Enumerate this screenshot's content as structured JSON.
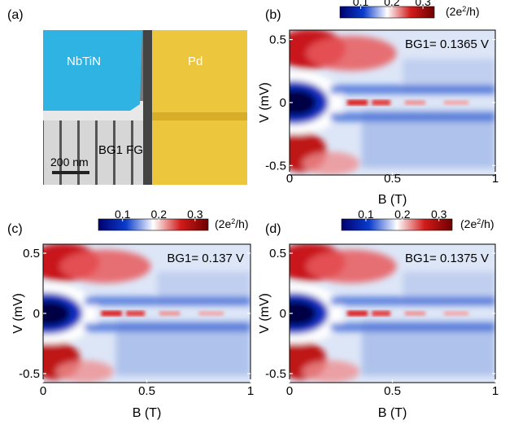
{
  "panels": {
    "a": {
      "label": "(a)",
      "nbtin": "NbTiN",
      "pd": "Pd",
      "bg1fg": "BG1  FG",
      "scale": "200 nm"
    },
    "b": {
      "label": "(b)",
      "annotation": "BG1= 0.1365 V"
    },
    "c": {
      "label": "(c)",
      "annotation": "BG1= 0.137 V"
    },
    "d": {
      "label": "(d)",
      "annotation": "BG1= 0.1375 V"
    }
  },
  "axes": {
    "xlabel": "B (T)",
    "ylabel": "V (mV)",
    "xticks": [
      "0",
      "0.5",
      "1"
    ],
    "yticks": [
      "0.5",
      "0",
      "-0.5"
    ]
  },
  "colorbar": {
    "ticks": [
      "0.1",
      "0.2",
      "0.3"
    ],
    "unit_prefix": "(2e",
    "unit_sup": "2",
    "unit_suffix": "/h)",
    "colors": [
      "#00006e",
      "#0a3ccc",
      "#ffffff",
      "#d21a1a",
      "#6e0000"
    ]
  },
  "chart_data": [
    {
      "type": "heatmap",
      "panel": "b",
      "title": "",
      "xlabel": "B (T)",
      "ylabel": "V (mV)",
      "xlim": [
        0,
        1
      ],
      "ylim": [
        -0.5,
        0.5
      ],
      "zlim": [
        0.05,
        0.35
      ],
      "zunit": "2e^2/h",
      "annotation": "BG1= 0.1365 V"
    },
    {
      "type": "heatmap",
      "panel": "c",
      "title": "",
      "xlabel": "B (T)",
      "ylabel": "V (mV)",
      "xlim": [
        0,
        1
      ],
      "ylim": [
        -0.5,
        0.5
      ],
      "zlim": [
        0.05,
        0.35
      ],
      "zunit": "2e^2/h",
      "annotation": "BG1= 0.137 V"
    },
    {
      "type": "heatmap",
      "panel": "d",
      "title": "",
      "xlabel": "B (T)",
      "ylabel": "V (mV)",
      "xlim": [
        0,
        1
      ],
      "ylim": [
        -0.5,
        0.5
      ],
      "zlim": [
        0.05,
        0.35
      ],
      "zunit": "2e^2/h",
      "annotation": "BG1= 0.1375 V"
    }
  ]
}
